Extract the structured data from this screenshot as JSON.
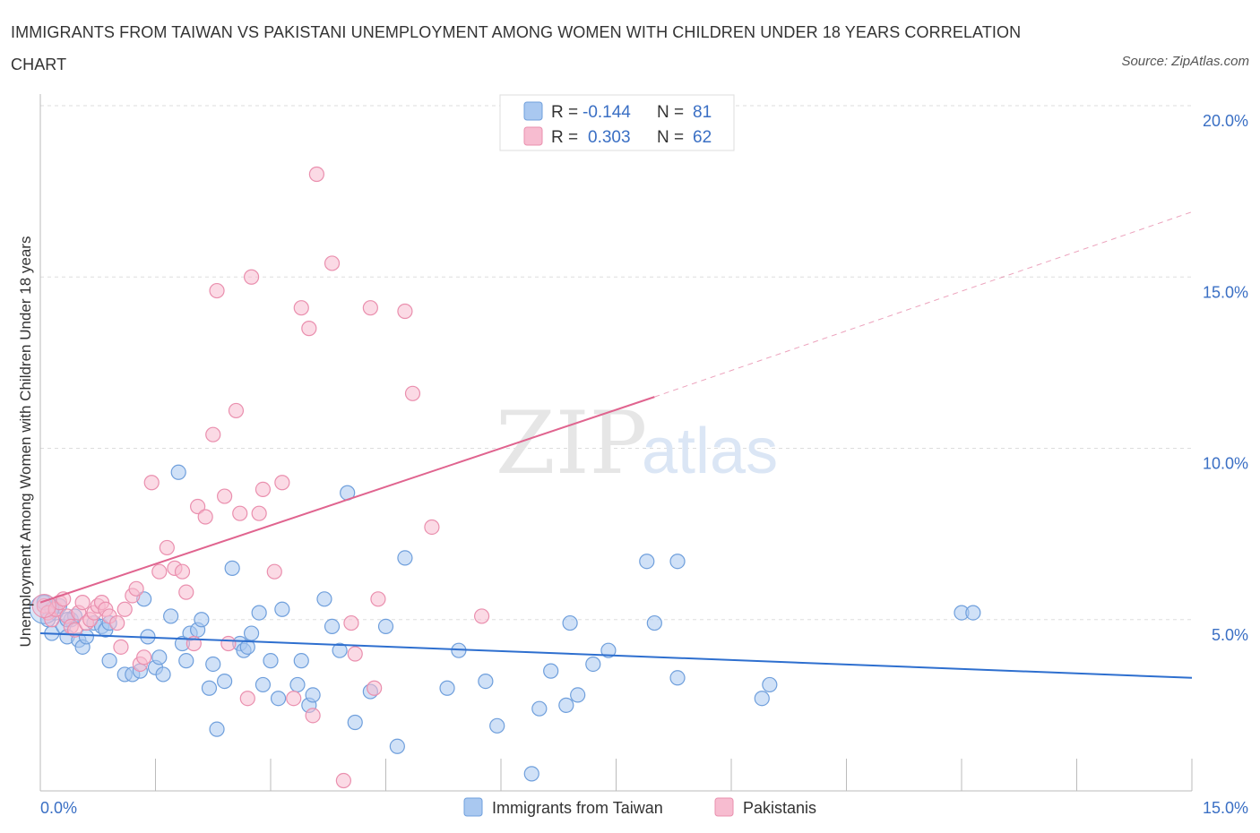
{
  "header": {
    "title": "IMMIGRANTS FROM TAIWAN VS PAKISTANI UNEMPLOYMENT AMONG WOMEN WITH CHILDREN UNDER 18 YEARS CORRELATION CHART",
    "source": "Source: ZipAtlas.com"
  },
  "watermark": {
    "zip": "ZIP",
    "atlas": "atlas"
  },
  "legend": {
    "rows": [
      {
        "r_label": "R =",
        "r_value": "-0.144",
        "n_label": "N =",
        "n_value": "81"
      },
      {
        "r_label": "R =",
        "r_value": "0.303",
        "n_label": "N =",
        "n_value": "62"
      }
    ]
  },
  "bottom_legend": {
    "taiwan": "Immigrants from Taiwan",
    "pakistani": "Pakistanis"
  },
  "colors": {
    "taiwan_fill": "#a9c8f0",
    "taiwan_stroke": "#6f9fdc",
    "taiwan_line": "#2e6fcf",
    "pakistani_fill": "#f7bcd0",
    "pakistani_stroke": "#ea8fae",
    "pakistani_line": "#e0648f",
    "grid": "#dddddd",
    "tick_label": "#3a6fc4"
  },
  "chart_data": {
    "type": "scatter",
    "title": "IMMIGRANTS FROM TAIWAN VS PAKISTANI UNEMPLOYMENT AMONG WOMEN WITH CHILDREN UNDER 18 YEARS CORRELATION CHART",
    "xlabel": "",
    "ylabel": "Unemployment Among Women with Children Under 18 years",
    "xlim": [
      0,
      15
    ],
    "ylim": [
      0,
      20
    ],
    "x_tick_labels": [
      "0.0%",
      "15.0%"
    ],
    "y_ticks": [
      5,
      10,
      15,
      20
    ],
    "y_tick_labels": [
      "5.0%",
      "10.0%",
      "15.0%",
      "20.0%"
    ],
    "grid": true,
    "legend_position": "top-center",
    "series": [
      {
        "name": "Immigrants from Taiwan",
        "r": -0.144,
        "n": 81,
        "trend": {
          "x": [
            0,
            15
          ],
          "y": [
            4.6,
            3.3
          ]
        },
        "points": [
          [
            0.05,
            5.5
          ],
          [
            0.1,
            5.0
          ],
          [
            0.15,
            4.6
          ],
          [
            0.2,
            5.2
          ],
          [
            0.25,
            5.4
          ],
          [
            0.3,
            4.8
          ],
          [
            0.35,
            4.5
          ],
          [
            0.4,
            5.0
          ],
          [
            0.45,
            5.1
          ],
          [
            0.5,
            4.4
          ],
          [
            0.55,
            4.2
          ],
          [
            0.6,
            4.5
          ],
          [
            0.7,
            4.9
          ],
          [
            0.8,
            4.8
          ],
          [
            0.85,
            4.7
          ],
          [
            0.9,
            4.9
          ],
          [
            0.9,
            3.8
          ],
          [
            1.1,
            3.4
          ],
          [
            1.2,
            3.4
          ],
          [
            1.3,
            3.5
          ],
          [
            1.35,
            5.6
          ],
          [
            1.4,
            4.5
          ],
          [
            1.5,
            3.6
          ],
          [
            1.55,
            3.9
          ],
          [
            1.6,
            3.4
          ],
          [
            1.7,
            5.1
          ],
          [
            1.8,
            9.3
          ],
          [
            1.85,
            4.3
          ],
          [
            1.9,
            3.8
          ],
          [
            1.95,
            4.6
          ],
          [
            2.05,
            4.7
          ],
          [
            2.1,
            5.0
          ],
          [
            2.2,
            3.0
          ],
          [
            2.25,
            3.7
          ],
          [
            2.3,
            1.8
          ],
          [
            2.4,
            3.2
          ],
          [
            2.5,
            6.5
          ],
          [
            2.6,
            4.3
          ],
          [
            2.65,
            4.1
          ],
          [
            2.7,
            4.2
          ],
          [
            2.75,
            4.6
          ],
          [
            2.85,
            5.2
          ],
          [
            2.9,
            3.1
          ],
          [
            3.0,
            3.8
          ],
          [
            3.1,
            2.7
          ],
          [
            3.15,
            5.3
          ],
          [
            3.35,
            3.1
          ],
          [
            3.4,
            3.8
          ],
          [
            3.5,
            2.5
          ],
          [
            3.55,
            2.8
          ],
          [
            3.7,
            5.6
          ],
          [
            3.8,
            4.8
          ],
          [
            3.9,
            4.1
          ],
          [
            4.0,
            8.7
          ],
          [
            4.1,
            2.0
          ],
          [
            4.3,
            2.9
          ],
          [
            4.5,
            4.8
          ],
          [
            4.65,
            1.3
          ],
          [
            4.75,
            6.8
          ],
          [
            5.3,
            3.0
          ],
          [
            5.45,
            4.1
          ],
          [
            5.8,
            3.2
          ],
          [
            5.95,
            1.9
          ],
          [
            6.4,
            0.5
          ],
          [
            6.5,
            2.4
          ],
          [
            6.65,
            3.5
          ],
          [
            6.85,
            2.5
          ],
          [
            6.9,
            4.9
          ],
          [
            7.0,
            2.8
          ],
          [
            7.2,
            3.7
          ],
          [
            7.4,
            4.1
          ],
          [
            7.9,
            6.7
          ],
          [
            8.0,
            4.9
          ],
          [
            8.3,
            3.3
          ],
          [
            8.3,
            6.7
          ],
          [
            9.4,
            2.7
          ],
          [
            9.5,
            3.1
          ],
          [
            12.0,
            5.2
          ],
          [
            12.15,
            5.2
          ],
          [
            0.15,
            5.3
          ],
          [
            0.35,
            5.0
          ]
        ]
      },
      {
        "name": "Pakistanis",
        "r": 0.303,
        "n": 62,
        "trend": {
          "x": [
            0,
            8.0
          ],
          "y": [
            5.5,
            11.5
          ]
        },
        "trend_extension": {
          "x": [
            8.0,
            15
          ],
          "y": [
            11.5,
            16.9
          ]
        },
        "points": [
          [
            0.05,
            5.4
          ],
          [
            0.1,
            5.2
          ],
          [
            0.15,
            5.0
          ],
          [
            0.2,
            5.3
          ],
          [
            0.25,
            5.5
          ],
          [
            0.3,
            5.6
          ],
          [
            0.35,
            5.1
          ],
          [
            0.4,
            4.8
          ],
          [
            0.45,
            4.7
          ],
          [
            0.5,
            5.2
          ],
          [
            0.55,
            5.5
          ],
          [
            0.6,
            4.9
          ],
          [
            0.65,
            5.0
          ],
          [
            0.7,
            5.2
          ],
          [
            0.75,
            5.4
          ],
          [
            0.8,
            5.5
          ],
          [
            0.85,
            5.3
          ],
          [
            0.9,
            5.1
          ],
          [
            1.0,
            4.9
          ],
          [
            1.05,
            4.2
          ],
          [
            1.1,
            5.3
          ],
          [
            1.2,
            5.7
          ],
          [
            1.25,
            5.9
          ],
          [
            1.3,
            3.7
          ],
          [
            1.35,
            3.9
          ],
          [
            1.45,
            9.0
          ],
          [
            1.55,
            6.4
          ],
          [
            1.65,
            7.1
          ],
          [
            1.75,
            6.5
          ],
          [
            1.85,
            6.4
          ],
          [
            1.9,
            5.8
          ],
          [
            2.0,
            4.3
          ],
          [
            2.05,
            8.3
          ],
          [
            2.15,
            8.0
          ],
          [
            2.25,
            10.4
          ],
          [
            2.3,
            14.6
          ],
          [
            2.4,
            8.6
          ],
          [
            2.45,
            4.3
          ],
          [
            2.55,
            11.1
          ],
          [
            2.6,
            8.1
          ],
          [
            2.7,
            2.7
          ],
          [
            2.75,
            15.0
          ],
          [
            2.85,
            8.1
          ],
          [
            2.9,
            8.8
          ],
          [
            3.05,
            6.4
          ],
          [
            3.15,
            9.0
          ],
          [
            3.3,
            2.7
          ],
          [
            3.4,
            14.1
          ],
          [
            3.5,
            13.5
          ],
          [
            3.55,
            2.2
          ],
          [
            3.6,
            18.0
          ],
          [
            3.8,
            15.4
          ],
          [
            3.95,
            0.3
          ],
          [
            4.05,
            4.9
          ],
          [
            4.1,
            4.0
          ],
          [
            4.3,
            14.1
          ],
          [
            4.35,
            3.0
          ],
          [
            4.4,
            5.6
          ],
          [
            4.75,
            14.0
          ],
          [
            4.85,
            11.6
          ],
          [
            5.1,
            7.7
          ],
          [
            5.75,
            5.1
          ]
        ]
      }
    ]
  }
}
